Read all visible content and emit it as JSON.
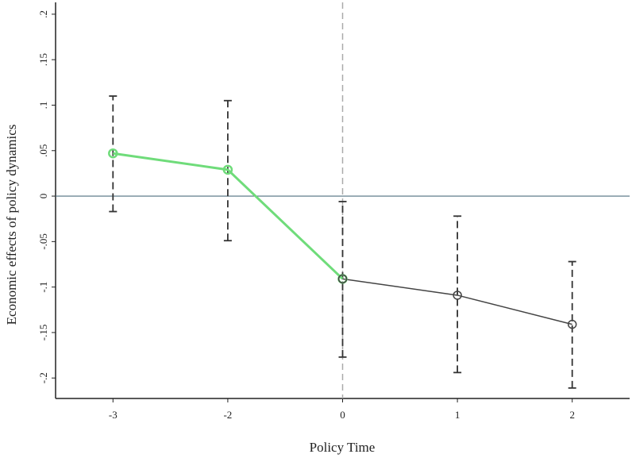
{
  "chart_data": {
    "type": "line",
    "x_label": "Policy Time",
    "y_label": "Economic effects of policy dynamics",
    "categories": [
      "-3",
      "-2",
      "0",
      "1",
      "2"
    ],
    "series": [
      {
        "color": "#6fdc7a",
        "values": [
          0.047,
          0.029,
          -0.091,
          null,
          null
        ]
      },
      {
        "color": "#444444",
        "values": [
          null,
          null,
          -0.091,
          -0.109,
          -0.141
        ]
      }
    ],
    "ci_lower": [
      -0.017,
      -0.049,
      -0.177,
      -0.194,
      -0.211
    ],
    "ci_upper": [
      0.11,
      0.105,
      -0.006,
      -0.022,
      -0.072
    ],
    "ci_color": "#333333",
    "ylim": [
      -0.2225,
      0.213
    ],
    "yticks": [
      {
        "value": -0.2,
        "label": "-.2"
      },
      {
        "value": -0.15,
        "label": "-.15"
      },
      {
        "value": -0.1,
        "label": "-.1"
      },
      {
        "value": -0.05,
        "label": "-.05"
      },
      0,
      {
        "value": 0.05,
        "label": ".05"
      },
      {
        "value": 0.1,
        "label": ".1"
      },
      {
        "value": 0.15,
        "label": ".15"
      },
      {
        "value": 0.2,
        "label": ".2"
      }
    ],
    "hline": 0,
    "vline": "0"
  }
}
